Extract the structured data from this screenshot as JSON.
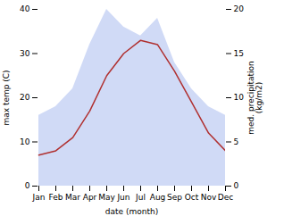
{
  "chart_data": {
    "type": "line",
    "categories": [
      "Jan",
      "Feb",
      "Mar",
      "Apr",
      "May",
      "Jun",
      "Jul",
      "Aug",
      "Sep",
      "Oct",
      "Nov",
      "Dec"
    ],
    "xlabel": "date (month)",
    "ylabel": "max temp (C)",
    "y2label": "med. precipitation\n(kg/m2)",
    "ylim": [
      0,
      40
    ],
    "yticks": [
      0,
      10,
      20,
      30,
      40
    ],
    "y2lim": [
      0,
      20
    ],
    "y2ticks": [
      0,
      5,
      10,
      15,
      20
    ],
    "series": [
      {
        "type": "area",
        "axis": "y2",
        "color": "#c8d4f5",
        "values": [
          8,
          9,
          11,
          16,
          20,
          18,
          17,
          19,
          14,
          11,
          9,
          8
        ]
      },
      {
        "type": "line",
        "color": "#b03030",
        "values": [
          7,
          8,
          11,
          17,
          25,
          30,
          33,
          32,
          26,
          19,
          12,
          8
        ]
      }
    ]
  }
}
